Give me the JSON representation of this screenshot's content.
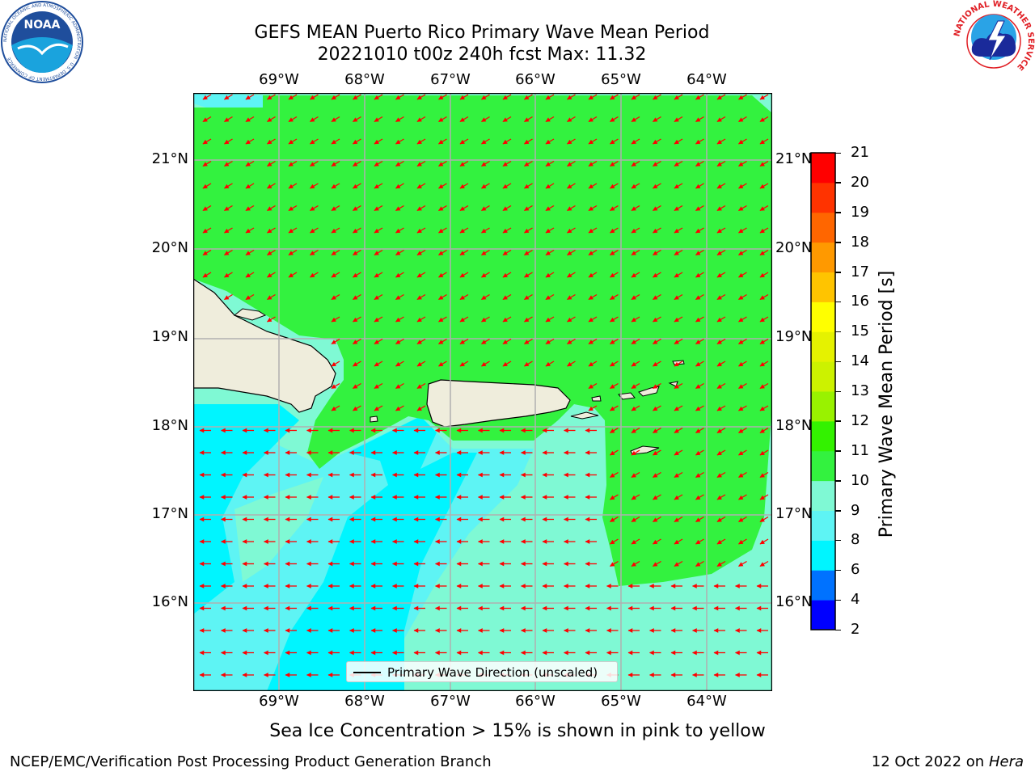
{
  "title": {
    "line1": "GEFS MEAN Puerto Rico Primary Wave Mean Period",
    "line2": "20221010 t00z 240h fcst   Max: 11.32"
  },
  "map": {
    "lon_labels": [
      "69°W",
      "68°W",
      "67°W",
      "66°W",
      "65°W",
      "64°W"
    ],
    "lat_labels": [
      "21°N",
      "20°N",
      "19°N",
      "18°N",
      "17°N",
      "16°N"
    ],
    "extent": {
      "lon_min": -70.0,
      "lon_max": -63.25,
      "lat_min": 15.08,
      "lat_max": 21.8
    },
    "colors": {
      "green": "#33f23f",
      "aquamarine": "#7ff9d4",
      "lightcyan": "#5ef4f4",
      "cyan": "#00f5ff",
      "land": "#efeddc",
      "arrow": "#ff0000"
    },
    "arrow_field": {
      "north_direction": "towards-southwest",
      "south_direction": "towards-west"
    }
  },
  "legend": {
    "label": "Primary Wave Direction (unscaled)"
  },
  "colorbar": {
    "label": "Primary Wave Mean Period [s]",
    "ticks": [
      "2",
      "4",
      "6",
      "8",
      "9",
      "10",
      "11",
      "12",
      "13",
      "14",
      "15",
      "16",
      "17",
      "18",
      "19",
      "20",
      "21"
    ],
    "colors": [
      "#0000ff",
      "#0072ff",
      "#00f5ff",
      "#5ef4f4",
      "#7ff9d4",
      "#33f23f",
      "#33f200",
      "#99f200",
      "#ccf200",
      "#e5f200",
      "#ffff00",
      "#ffc400",
      "#ff9900",
      "#ff6600",
      "#ff3300",
      "#ff0000"
    ]
  },
  "ice_note": "Sea Ice Concentration > 15% is shown in pink to yellow",
  "footer": {
    "left": "NCEP/EMC/Verification Post Processing Product Generation Branch",
    "date": "12 Oct 2022 on ",
    "machine": "Hera"
  },
  "logos": {
    "noaa": {
      "text": "NOAA",
      "ring": "NATIONAL OCEANIC AND ATMOSPHERIC ADMINISTRATION · U.S. DEPARTMENT OF COMMERCE"
    },
    "nws": {
      "ring": "NATIONAL WEATHER SERVICE"
    }
  }
}
